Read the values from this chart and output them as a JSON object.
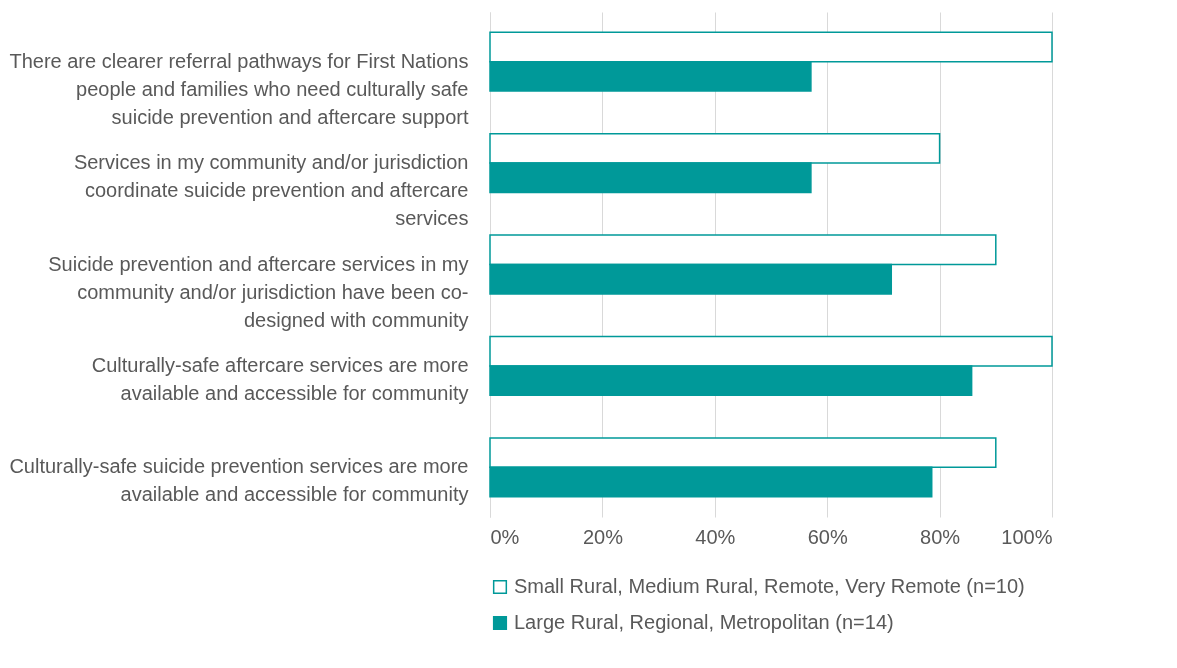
{
  "chart_data": {
    "type": "bar",
    "orientation": "horizontal",
    "categories": [
      "There are clearer referral pathways for First Nations\npeople and families who need culturally safe\nsuicide prevention and aftercare support",
      "Services in my community and/or jurisdiction\ncoordinate suicide prevention and aftercare\nservices",
      "Suicide prevention and aftercare  services in my\ncommunity and/or jurisdiction have been co-\ndesigned with community",
      "Culturally-safe aftercare services are more\navailable and accessible for community",
      "Culturally-safe suicide prevention services are more\navailable and accessible for community"
    ],
    "series": [
      {
        "name": "Small Rural, Medium Rural, Remote, Very Remote (n=10)",
        "color": "#ffffff",
        "values": [
          100,
          80,
          90,
          100,
          90
        ]
      },
      {
        "name": "Large Rural, Regional, Metropolitan (n=14)",
        "color": "#009999",
        "values": [
          57.1,
          57.1,
          71.4,
          85.7,
          78.6
        ]
      }
    ],
    "xlim": [
      0,
      100
    ],
    "xticks": [
      {
        "value": 0,
        "label": "0%"
      },
      {
        "value": 20,
        "label": "20%"
      },
      {
        "value": 40,
        "label": "40%"
      },
      {
        "value": 60,
        "label": "60%"
      },
      {
        "value": 80,
        "label": "80%"
      },
      {
        "value": 100,
        "label": "100%"
      }
    ],
    "grid": "x",
    "legend": "bottom"
  }
}
